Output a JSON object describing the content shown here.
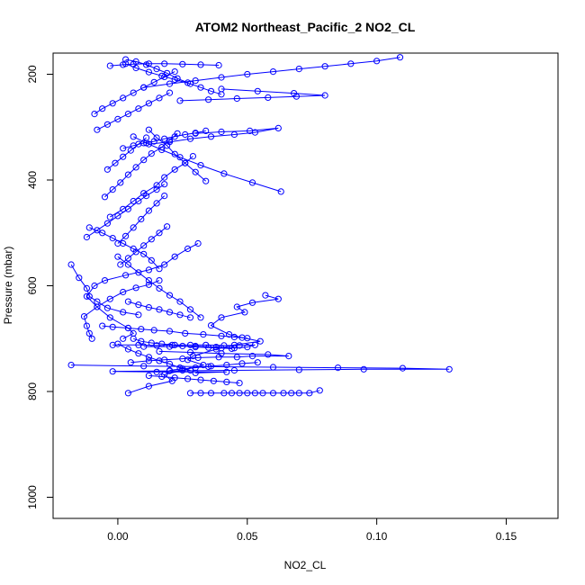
{
  "colors": {
    "series": "#0000ff",
    "axes": "#000000",
    "background": "#ffffff"
  },
  "chart_data": {
    "type": "line",
    "title": "ATOM2 Northeast_Pacific_2 NO2_CL",
    "xlabel": "NO2_CL",
    "ylabel": "Pressure (mbar)",
    "xlim": [
      -0.025,
      0.17
    ],
    "ylim": [
      1040,
      160
    ],
    "y_reversed": true,
    "grid": false,
    "marker": "open-circle",
    "xticks": [
      0.0,
      0.05,
      0.1,
      0.15
    ],
    "xtick_labels": [
      "0.00",
      "0.05",
      "0.10",
      "0.15"
    ],
    "yticks": [
      200,
      400,
      600,
      800,
      1000
    ],
    "ytick_labels": [
      "200",
      "400",
      "600",
      "800",
      "1000"
    ],
    "series": [
      {
        "x": [
          0.004,
          0.012,
          0.021,
          0.018,
          0.025,
          0.033,
          0.027,
          0.029,
          0.038,
          0.045,
          0.055,
          0.048,
          0.043,
          0.036,
          0.04,
          0.049,
          0.046,
          0.052,
          0.062,
          0.057
        ],
        "y": [
          803,
          790,
          780,
          768,
          760,
          750,
          740,
          733,
          720,
          712,
          705,
          698,
          692,
          675,
          660,
          650,
          640,
          632,
          625,
          618
        ]
      },
      {
        "x": [
          0.028,
          0.032,
          0.036,
          0.041,
          0.044,
          0.047,
          0.05,
          0.053,
          0.056,
          0.06,
          0.064,
          0.067,
          0.07,
          0.074,
          0.078
        ],
        "y": [
          803,
          803,
          803,
          803,
          803,
          803,
          803,
          803,
          803,
          803,
          803,
          803,
          803,
          803,
          798
        ]
      },
      {
        "x": [
          -0.018,
          0.01,
          0.035,
          0.06,
          0.085,
          0.11,
          0.128,
          0.095,
          0.07,
          0.045,
          0.02,
          -0.002,
          0.015,
          0.042,
          0.03
        ],
        "y": [
          750,
          752,
          753,
          754,
          755,
          756,
          758,
          758,
          759,
          760,
          761,
          762,
          763,
          763,
          765
        ]
      },
      {
        "x": [
          0.005,
          0.012,
          0.018,
          0.025,
          0.031,
          0.039,
          0.046,
          0.052,
          0.066,
          0.058,
          0.04,
          0.028,
          0.016
        ],
        "y": [
          745,
          742,
          740,
          738,
          736,
          735,
          735,
          733,
          733,
          730,
          728,
          726,
          724
        ]
      },
      {
        "x": [
          -0.002,
          0.008,
          0.015,
          0.022,
          0.028,
          0.034,
          0.041,
          0.047,
          0.053,
          0.05,
          0.045,
          0.038,
          0.03,
          0.02,
          0.01
        ],
        "y": [
          712,
          712,
          713,
          712,
          712,
          712,
          713,
          713,
          712,
          716,
          718,
          716,
          714,
          715,
          715
        ]
      },
      {
        "x": [
          0.002,
          0.006,
          0.004,
          -0.003,
          -0.008,
          -0.012,
          -0.009,
          -0.005,
          0.003,
          0.012,
          0.018,
          0.022,
          0.027,
          0.031
        ],
        "y": [
          700,
          690,
          680,
          660,
          640,
          620,
          600,
          590,
          580,
          570,
          560,
          545,
          530,
          520
        ]
      },
      {
        "x": [
          -0.006,
          -0.002,
          0.004,
          0.009,
          0.014,
          0.02,
          0.026,
          0.033,
          0.04,
          0.045,
          0.05
        ],
        "y": [
          676,
          678,
          680,
          682,
          684,
          686,
          690,
          692,
          695,
          697,
          699
        ]
      },
      {
        "x": [
          -0.01,
          -0.011,
          -0.012,
          -0.013,
          -0.008,
          -0.003,
          0.002,
          0.007,
          0.012,
          0.016
        ],
        "y": [
          700,
          690,
          676,
          658,
          640,
          625,
          612,
          604,
          598,
          590
        ]
      },
      {
        "x": [
          -0.018,
          -0.015,
          -0.012,
          -0.011,
          -0.008,
          -0.004,
          0.002,
          0.008
        ],
        "y": [
          560,
          585,
          605,
          620,
          630,
          642,
          650,
          655
        ]
      },
      {
        "x": [
          -0.011,
          -0.006,
          -0.002,
          0.002,
          0.006,
          0.01,
          0.013,
          0.016
        ],
        "y": [
          490,
          500,
          510,
          520,
          530,
          540,
          552,
          568
        ]
      },
      {
        "x": [
          -0.012,
          -0.008,
          -0.004,
          0.0,
          0.004,
          0.008,
          0.011,
          0.015,
          0.018
        ],
        "y": [
          508,
          495,
          482,
          468,
          455,
          440,
          430,
          418,
          408
        ]
      },
      {
        "x": [
          -0.003,
          0.002,
          0.006,
          0.01,
          0.015,
          0.018,
          0.022,
          0.026,
          0.029
        ],
        "y": [
          470,
          455,
          440,
          425,
          410,
          395,
          380,
          368,
          355
        ]
      },
      {
        "x": [
          -0.005,
          -0.002,
          0.001,
          0.004,
          0.007,
          0.01,
          0.013,
          0.017,
          0.02,
          0.023
        ],
        "y": [
          432,
          418,
          405,
          390,
          376,
          362,
          350,
          338,
          325,
          312
        ]
      },
      {
        "x": [
          0.063,
          0.052,
          0.041,
          0.032,
          0.024,
          0.017,
          0.011,
          0.006
        ],
        "y": [
          422,
          405,
          388,
          372,
          357,
          343,
          330,
          318
        ]
      },
      {
        "x": [
          0.034,
          0.03,
          0.026,
          0.022,
          0.019,
          0.015,
          0.012
        ],
        "y": [
          402,
          385,
          368,
          351,
          335,
          320,
          305
        ]
      },
      {
        "x": [
          0.002,
          0.006,
          0.01,
          0.014,
          0.018,
          0.022,
          0.026,
          0.03,
          0.034
        ],
        "y": [
          340,
          335,
          330,
          327,
          322,
          318,
          314,
          311,
          307
        ]
      },
      {
        "x": [
          0.012,
          0.02,
          0.028,
          0.036,
          0.045,
          0.053,
          0.062,
          0.051,
          0.04,
          0.03
        ],
        "y": [
          332,
          328,
          322,
          318,
          314,
          310,
          302,
          307,
          309,
          312
        ]
      },
      {
        "x": [
          -0.008,
          -0.004,
          0.0,
          0.004,
          0.008,
          0.012,
          0.016,
          0.02
        ],
        "y": [
          305,
          295,
          285,
          275,
          265,
          255,
          245,
          235
        ]
      },
      {
        "x": [
          -0.009,
          -0.006,
          -0.002,
          0.002,
          0.006,
          0.01,
          0.014,
          0.018,
          0.022
        ],
        "y": [
          275,
          265,
          255,
          245,
          235,
          225,
          215,
          205,
          195
        ]
      },
      {
        "x": [
          0.024,
          0.035,
          0.046,
          0.058,
          0.069,
          0.08,
          0.068,
          0.054,
          0.04
        ],
        "y": [
          250,
          248,
          246,
          244,
          242,
          240,
          236,
          232,
          228
        ]
      },
      {
        "x": [
          0.04,
          0.036,
          0.032,
          0.028,
          0.022,
          0.017,
          0.012,
          0.007,
          0.003
        ],
        "y": [
          238,
          232,
          225,
          218,
          210,
          203,
          196,
          188,
          180
        ]
      },
      {
        "x": [
          0.01,
          0.02,
          0.03,
          0.04,
          0.05,
          0.06,
          0.07,
          0.08,
          0.09,
          0.1,
          0.109
        ],
        "y": [
          225,
          218,
          212,
          206,
          200,
          195,
          190,
          185,
          180,
          175,
          168
        ]
      },
      {
        "x": [
          -0.003,
          0.002,
          0.006,
          0.012,
          0.018,
          0.025,
          0.032,
          0.039
        ],
        "y": [
          184,
          182,
          181,
          180,
          180,
          181,
          182,
          183
        ]
      },
      {
        "x": [
          0.003,
          0.007,
          0.011,
          0.015,
          0.019,
          0.023,
          0.027
        ],
        "y": [
          172,
          176,
          182,
          190,
          198,
          208,
          216
        ]
      },
      {
        "x": [
          0.0,
          0.004,
          0.008,
          0.012,
          0.016,
          0.02,
          0.024,
          0.028,
          0.032
        ],
        "y": [
          545,
          560,
          575,
          590,
          605,
          618,
          630,
          645,
          660
        ]
      },
      {
        "x": [
          0.004,
          0.008,
          0.012,
          0.016,
          0.02,
          0.024,
          0.028
        ],
        "y": [
          630,
          636,
          641,
          645,
          650,
          655,
          660
        ]
      },
      {
        "x": [
          0.006,
          0.009,
          0.013,
          0.017,
          0.021,
          0.025,
          0.03,
          0.035,
          0.04,
          0.044
        ],
        "y": [
          700,
          705,
          708,
          710,
          712,
          714,
          716,
          717,
          718,
          719
        ]
      },
      {
        "x": [
          0.001,
          0.004,
          0.007,
          0.01,
          0.013,
          0.016,
          0.019
        ],
        "y": [
          560,
          548,
          536,
          524,
          512,
          500,
          488
        ]
      },
      {
        "x": [
          0.0,
          0.003,
          0.006,
          0.009,
          0.012,
          0.015,
          0.018
        ],
        "y": [
          520,
          506,
          490,
          474,
          458,
          444,
          430
        ]
      },
      {
        "x": [
          -0.004,
          -0.001,
          0.002,
          0.005,
          0.008,
          0.011
        ],
        "y": [
          380,
          368,
          356,
          344,
          332,
          320
        ]
      },
      {
        "x": [
          0.0,
          0.004,
          0.008,
          0.012,
          0.016,
          0.02,
          0.024,
          0.028
        ],
        "y": [
          710,
          720,
          728,
          735,
          742,
          748,
          755,
          760
        ]
      },
      {
        "x": [
          0.012,
          0.017,
          0.022,
          0.027,
          0.032,
          0.037,
          0.042,
          0.047
        ],
        "y": [
          770,
          772,
          774,
          776,
          778,
          780,
          782,
          784
        ]
      },
      {
        "x": [
          0.02,
          0.025,
          0.03,
          0.036,
          0.042,
          0.048,
          0.054
        ],
        "y": [
          760,
          757,
          755,
          752,
          750,
          747,
          745
        ]
      }
    ]
  }
}
